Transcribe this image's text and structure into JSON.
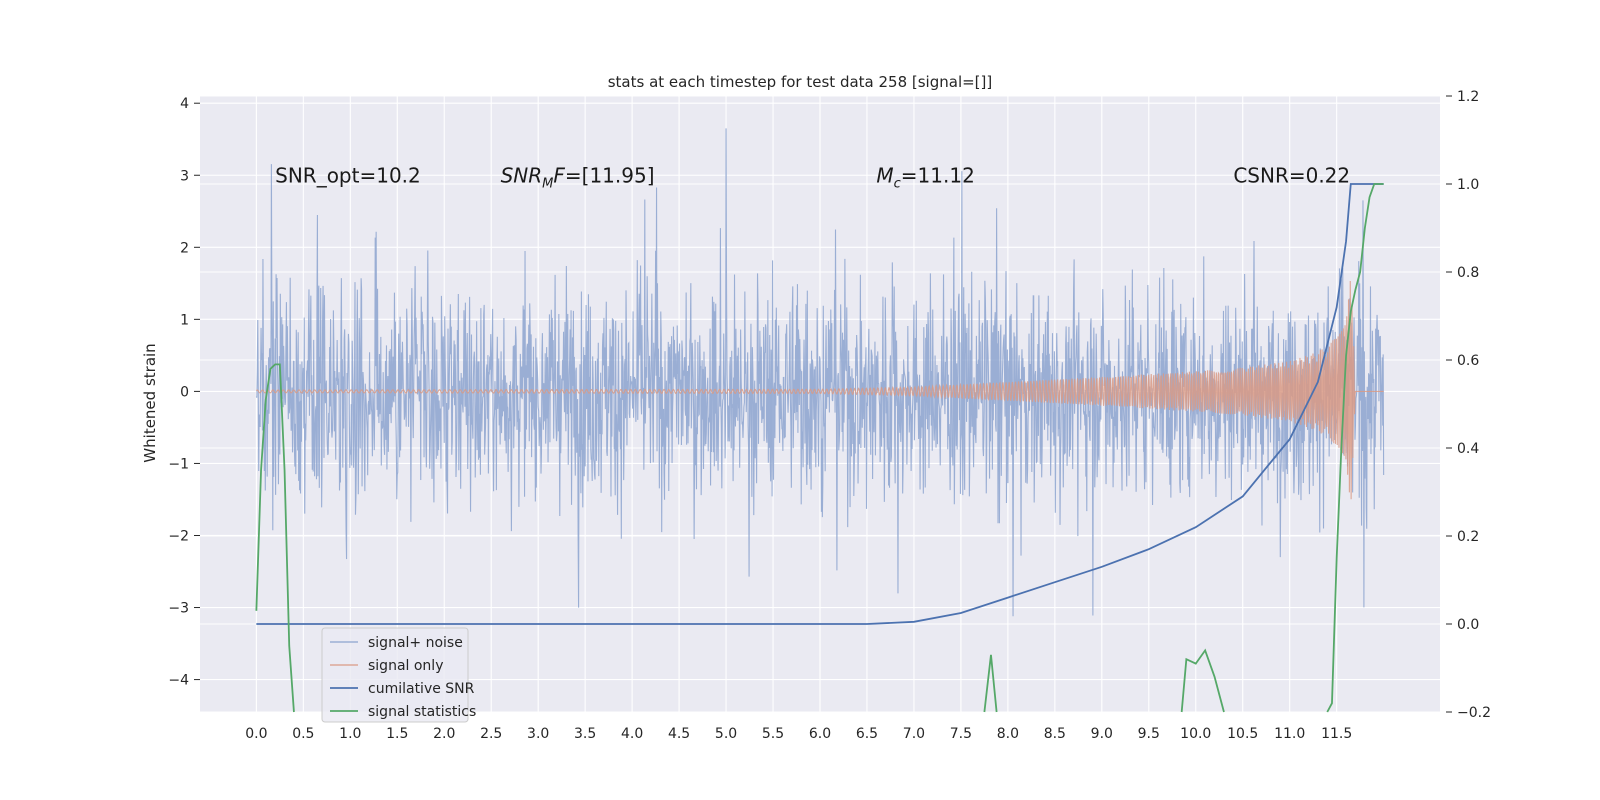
{
  "chart_data": {
    "type": "line",
    "title": "stats at each timestep for test data 258 [signal=[]]",
    "ylabel": "Whitened strain",
    "xlabel": "",
    "xlim": [
      -0.6,
      12.6
    ],
    "ylim": [
      -4.45,
      4.1
    ],
    "y2lim": [
      -0.2,
      1.2
    ],
    "x_ticks": [
      "0.0",
      "0.5",
      "1.0",
      "1.5",
      "2.0",
      "2.5",
      "3.0",
      "3.5",
      "4.0",
      "4.5",
      "5.0",
      "5.5",
      "6.0",
      "6.5",
      "7.0",
      "7.5",
      "8.0",
      "8.5",
      "9.0",
      "9.5",
      "10.0",
      "10.5",
      "11.0",
      "11.5"
    ],
    "y_ticks": [
      "4",
      "3",
      "2",
      "1",
      "0",
      "−1",
      "−2",
      "−3",
      "−4"
    ],
    "y2_ticks": [
      "1.2",
      "1.0",
      "0.8",
      "0.6",
      "0.4",
      "0.2",
      "0.0",
      "−0.2"
    ],
    "grid": true,
    "legend_position": "lower-left",
    "annotations": [
      {
        "text": "SNR_opt=10.2",
        "x": 0.2,
        "y": 3.0
      },
      {
        "text": "F=[11.95]",
        "prefix": "SNR",
        "sub": "M",
        "x": 2.6,
        "y": 3.0
      },
      {
        "text": "=11.12",
        "prefix": "M",
        "sub": "c",
        "x": 6.6,
        "y": 3.0
      },
      {
        "text": "CSNR=0.22",
        "x": 10.4,
        "y": 3.0
      }
    ],
    "series": [
      {
        "name": "signal+ noise",
        "color": "#8ca3cf",
        "axis": "left",
        "x_range": [
          0.0,
          12.0
        ],
        "envelope_typical": [
          -2.1,
          2.0
        ],
        "min": -4.1,
        "max": 3.65
      },
      {
        "name": "signal only",
        "color": "#d99a85",
        "axis": "left",
        "x": [
          0.0,
          6.0,
          7.0,
          8.0,
          9.0,
          10.0,
          10.5,
          11.0,
          11.3,
          11.5,
          11.6,
          11.65,
          11.7,
          12.0
        ],
        "amplitude": [
          0.02,
          0.03,
          0.06,
          0.13,
          0.2,
          0.28,
          0.33,
          0.42,
          0.55,
          0.75,
          1.1,
          1.8,
          0.0,
          0.0
        ]
      },
      {
        "name": "cumilative SNR",
        "color": "#4c72b0",
        "axis": "right",
        "x": [
          0.0,
          6.0,
          6.5,
          7.0,
          7.5,
          8.0,
          8.5,
          9.0,
          9.5,
          10.0,
          10.5,
          11.0,
          11.3,
          11.5,
          11.6,
          11.65,
          11.7,
          12.0
        ],
        "y": [
          0.0,
          0.0,
          0.0,
          0.005,
          0.025,
          0.06,
          0.095,
          0.13,
          0.17,
          0.22,
          0.29,
          0.42,
          0.55,
          0.72,
          0.87,
          1.0,
          1.0,
          1.0
        ]
      },
      {
        "name": "signal statistics",
        "color": "#55a868",
        "axis": "right",
        "segments": [
          {
            "x": [
              0.0,
              0.05,
              0.1,
              0.15,
              0.2,
              0.25,
              0.3,
              0.35,
              0.4
            ],
            "y": [
              0.03,
              0.35,
              0.51,
              0.58,
              0.59,
              0.59,
              0.35,
              -0.05,
              -0.2
            ]
          },
          {
            "x": [
              7.75,
              7.82,
              7.88
            ],
            "y": [
              -0.2,
              -0.07,
              -0.2
            ]
          },
          {
            "x": [
              9.85,
              9.9,
              10.0,
              10.1,
              10.2,
              10.3
            ],
            "y": [
              -0.2,
              -0.08,
              -0.09,
              -0.06,
              -0.12,
              -0.2
            ]
          },
          {
            "x": [
              11.4,
              11.45,
              11.5,
              11.55,
              11.6,
              11.65,
              11.7,
              11.75,
              11.8,
              11.85,
              11.9,
              11.95,
              12.0
            ],
            "y": [
              -0.2,
              -0.18,
              0.15,
              0.4,
              0.61,
              0.71,
              0.76,
              0.8,
              0.9,
              0.97,
              1.0,
              1.0,
              1.0
            ]
          }
        ]
      }
    ]
  }
}
